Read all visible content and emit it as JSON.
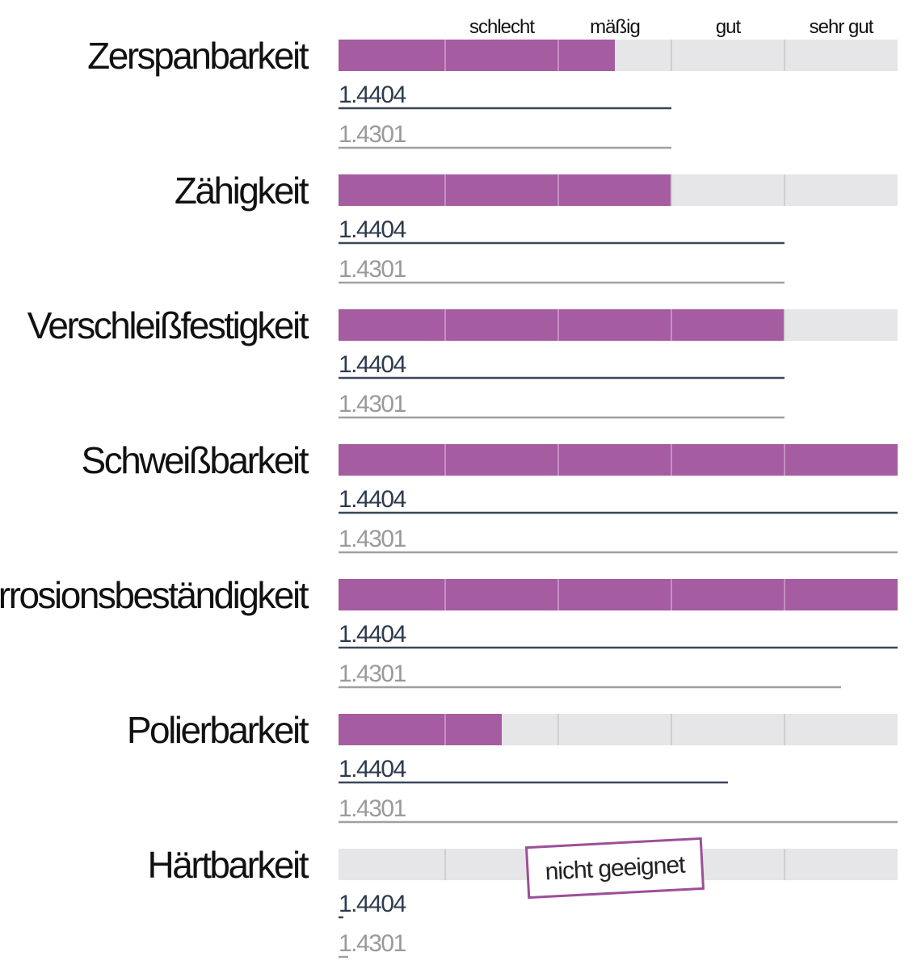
{
  "chart_data": {
    "type": "bar",
    "scale": [
      "",
      "schlecht",
      "mäßig",
      "gut",
      "sehr gut"
    ],
    "scale_max": 5,
    "materials": [
      "1.4404",
      "1.4301"
    ],
    "colors": {
      "bar_fill": "#a55ca0",
      "bar_track": "#e6e6e8",
      "line_1_4404": "#3b465a",
      "line_1_4301": "#a0a0a0",
      "stamp_border": "#9c4f98"
    },
    "properties": [
      {
        "name": "Zerspanbarkeit",
        "bar": 2.5,
        "line_1_4404": 3,
        "line_1_4301": 3
      },
      {
        "name": "Zähigkeit",
        "bar": 3,
        "line_1_4404": 4,
        "line_1_4301": 4
      },
      {
        "name": "Verschleißfestigkeit",
        "bar": 4,
        "line_1_4404": 4,
        "line_1_4301": 4
      },
      {
        "name": "Schweißbarkeit",
        "bar": 5,
        "line_1_4404": 5,
        "line_1_4301": 5
      },
      {
        "name": "Korrosionsbeständigkeit",
        "bar": 5,
        "line_1_4404": 5,
        "line_1_4301": 4.5
      },
      {
        "name": "Polierbarkeit",
        "bar": 1.5,
        "line_1_4404": 3.5,
        "line_1_4301": 5
      },
      {
        "name": "Härtbarkeit",
        "bar": 0,
        "line_1_4404": 0,
        "line_1_4301": 0,
        "note": "nicht geeignet"
      }
    ]
  }
}
